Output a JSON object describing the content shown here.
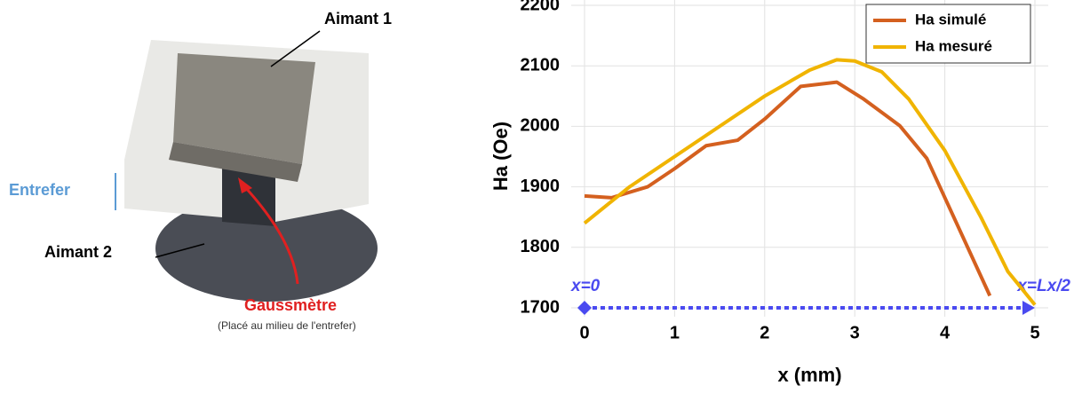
{
  "photo": {
    "labels": {
      "magnet1": "Aimant 1",
      "gap": "Entrefer",
      "magnet2": "Aimant 2",
      "probe": "Gaussmètre",
      "probe_note": "(Placé au milieu de l'entrefer)"
    }
  },
  "chart_data": {
    "type": "line",
    "xlabel": "x (mm)",
    "ylabel": "Ha (Oe)",
    "xlim": [
      0,
      5
    ],
    "ylim": [
      1700,
      2200
    ],
    "xticks": [
      0,
      1,
      2,
      3,
      4,
      5
    ],
    "yticks": [
      1700,
      1800,
      1900,
      2000,
      2100,
      2200
    ],
    "grid": true,
    "legend": "upper right",
    "series": [
      {
        "name": "Ha simulé",
        "color": "#d4601f",
        "x": [
          0,
          0.3,
          0.7,
          1,
          1.35,
          1.7,
          2,
          2.4,
          2.8,
          3.1,
          3.5,
          3.8,
          4.5
        ],
        "values": [
          1885,
          1882,
          1900,
          1930,
          1968,
          1977,
          2012,
          2066,
          2073,
          2045,
          2001,
          1947,
          1720
        ]
      },
      {
        "name": "Ha mesuré",
        "color": "#f0b400",
        "x": [
          0,
          0.5,
          1,
          1.5,
          2,
          2.5,
          2.8,
          3,
          3.3,
          3.6,
          4,
          4.4,
          4.7,
          5
        ],
        "values": [
          1840,
          1900,
          1950,
          2000,
          2050,
          2093,
          2110,
          2108,
          2090,
          2045,
          1960,
          1850,
          1760,
          1705
        ]
      }
    ],
    "annotations": [
      "x=0",
      "x=Lx/2"
    ]
  }
}
